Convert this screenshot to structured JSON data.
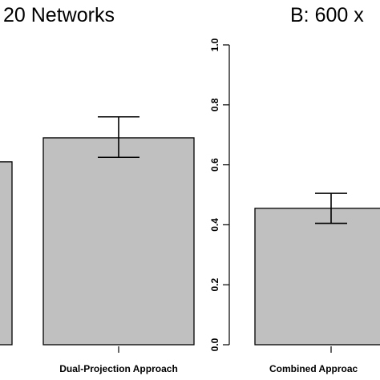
{
  "chart_data": [
    {
      "type": "bar",
      "title": "20 Networks",
      "categories": [
        "",
        "Dual-Projection Approach"
      ],
      "values": [
        0.61,
        0.69
      ],
      "error_bars": [
        null,
        {
          "low": 0.625,
          "high": 0.76
        }
      ],
      "ylim": [
        0,
        1
      ],
      "bar_color": "#c0c0c0"
    },
    {
      "type": "bar",
      "title": "B: 600 x",
      "categories": [
        "Combined Approac"
      ],
      "values": [
        0.455
      ],
      "error_bars": [
        {
          "low": 0.405,
          "high": 0.505
        }
      ],
      "ylim": [
        0,
        1
      ],
      "yticks": [
        "0.0",
        "0.2",
        "0.4",
        "0.6",
        "0.8",
        "1.0"
      ],
      "bar_color": "#c0c0c0"
    }
  ]
}
